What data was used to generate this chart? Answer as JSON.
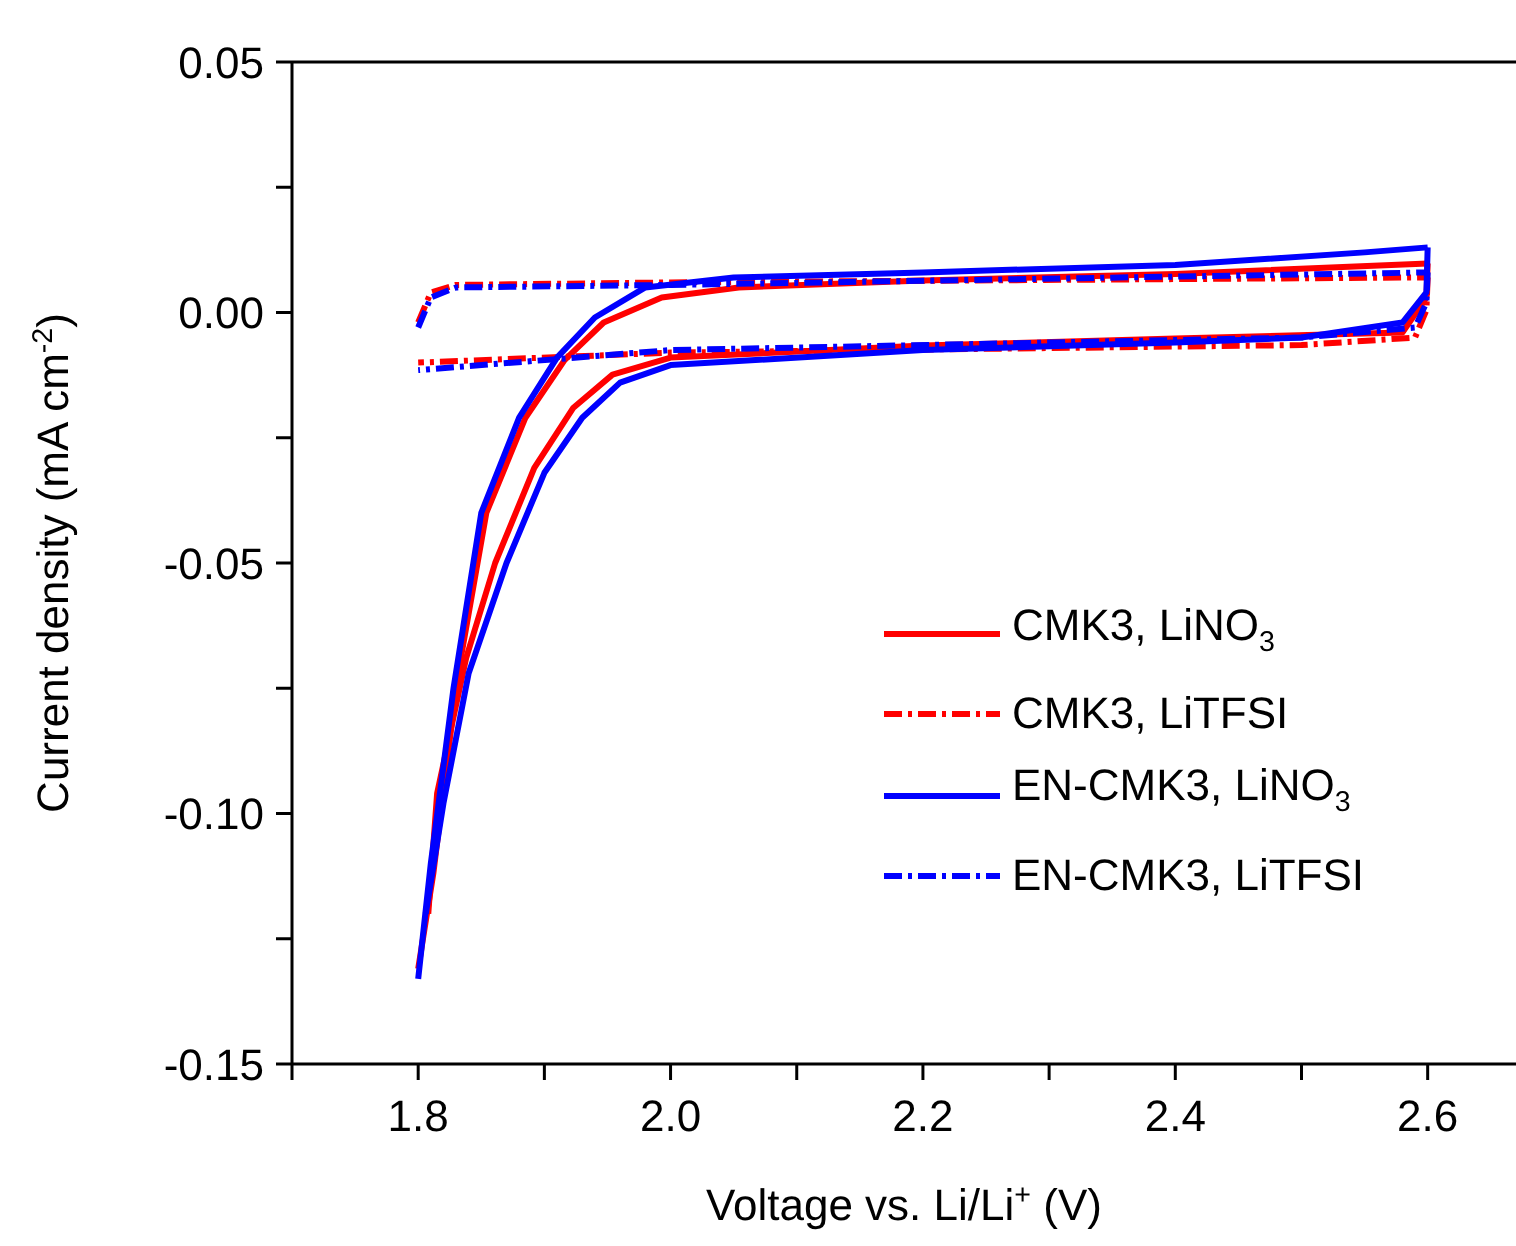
{
  "chart_data": {
    "type": "line",
    "xlabel": "Voltage vs. Li/Li$^{+}$ (V)",
    "ylabel": "Current density (mA cm$^{-2}$)",
    "xlim": [
      1.7,
      2.67
    ],
    "xticks": [
      {
        "value": 1.7,
        "label": null
      },
      1.8,
      {
        "value": 1.9,
        "label": null
      },
      {
        "value": 2,
        "label": "2.0"
      },
      {
        "value": 2.1,
        "label": null
      },
      2.2,
      {
        "value": 2.3,
        "label": null
      },
      2.4,
      {
        "value": 2.5,
        "label": null
      },
      2.6
    ],
    "ylim": [
      -0.15,
      0.05
    ],
    "yticks": [
      -0.15,
      {
        "value": -0.125,
        "label": null
      },
      {
        "value": -0.1,
        "label": "-0.10"
      },
      {
        "value": -0.075,
        "label": null
      },
      -0.05,
      {
        "value": -0.025,
        "label": null
      },
      {
        "value": 0,
        "label": "0.00"
      },
      {
        "value": 0.025,
        "label": null
      },
      0.05
    ],
    "grid": false,
    "legend": "right",
    "marker": "none",
    "series": [
      {
        "name": "CMK3, LiNO$_{3}$",
        "color": "#ff0000",
        "line_style": "solid",
        "x": [
          1.8,
          1.812,
          1.831,
          1.854,
          1.885,
          1.916,
          1.947,
          1.993,
          2.054,
          2.2,
          2.4,
          2.6
        ],
        "values": [
          -0.131,
          -0.112,
          -0.073,
          -0.04,
          -0.021,
          -0.0095,
          -0.002,
          0.003,
          0.005,
          0.0064,
          0.0077,
          0.0098
        ]
      },
      {
        "color": "#ff0000",
        "line_style": "solid",
        "x": [
          2.6,
          2.599,
          2.58,
          2.4,
          2.2,
          2.0,
          1.954,
          1.923,
          1.892,
          1.861,
          1.838,
          1.815,
          1.808
        ],
        "values": [
          0.0098,
          0.003,
          -0.004,
          -0.0052,
          -0.0066,
          -0.009,
          -0.0124,
          -0.019,
          -0.031,
          -0.05,
          -0.069,
          -0.096,
          -0.12
        ]
      },
      {
        "name": "CMK3, LiTFSI",
        "color": "#ff0000",
        "line_style": "dashed",
        "x": [
          1.8,
          1.81,
          1.83,
          2.0,
          2.6
        ],
        "values": [
          -0.002,
          0.004,
          0.0055,
          0.006,
          0.007
        ]
      },
      {
        "color": "#ff0000",
        "line_style": "dashed",
        "x": [
          2.6,
          2.599,
          2.59,
          2.5,
          2.0,
          1.8
        ],
        "values": [
          0.007,
          0.0005,
          -0.005,
          -0.0065,
          -0.008,
          -0.01
        ]
      },
      {
        "name": "EN-CMK3, LiNO$_{3}$",
        "color": "#0000ff",
        "line_style": "solid",
        "x": [
          1.8,
          1.81,
          1.828,
          1.85,
          1.88,
          1.91,
          1.94,
          1.98,
          2.05,
          2.2,
          2.4,
          2.55,
          2.6
        ],
        "values": [
          -0.133,
          -0.11,
          -0.075,
          -0.04,
          -0.021,
          -0.009,
          -0.001,
          0.005,
          0.007,
          0.008,
          0.0095,
          0.012,
          0.013
        ]
      },
      {
        "color": "#0000ff",
        "line_style": "solid",
        "x": [
          2.6,
          2.599,
          2.58,
          2.5,
          2.4,
          2.2,
          2.0,
          1.96,
          1.93,
          1.9,
          1.87,
          1.84,
          1.82,
          1.806
        ],
        "values": [
          0.013,
          0.004,
          -0.002,
          -0.005,
          -0.006,
          -0.0075,
          -0.0105,
          -0.014,
          -0.021,
          -0.032,
          -0.05,
          -0.072,
          -0.098,
          -0.12
        ]
      },
      {
        "name": "EN-CMK3, LiTFSI",
        "color": "#0000ff",
        "line_style": "dashed",
        "x": [
          1.8,
          1.81,
          1.83,
          2.0,
          2.6
        ],
        "values": [
          -0.003,
          0.003,
          0.005,
          0.0055,
          0.008
        ]
      },
      {
        "color": "#0000ff",
        "line_style": "dashed",
        "x": [
          2.6,
          2.599,
          2.59,
          2.5,
          2.0,
          1.8
        ],
        "values": [
          0.008,
          0.002,
          -0.003,
          -0.005,
          -0.0075,
          -0.0115
        ]
      }
    ]
  }
}
